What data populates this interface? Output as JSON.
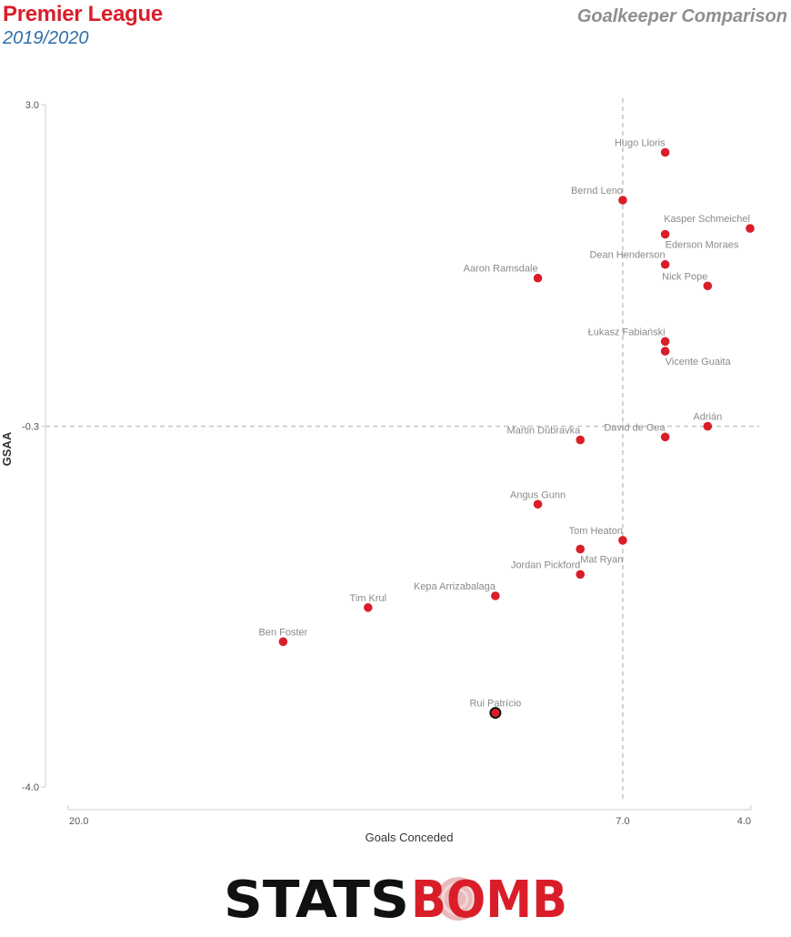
{
  "header": {
    "title": "Premier League",
    "season": "2019/2020",
    "subtitle": "Goalkeeper Comparison"
  },
  "chart_data": {
    "type": "scatter",
    "xlabel": "Goals Conceded",
    "ylabel": "GSAA",
    "x_reversed": true,
    "xlim": [
      20,
      4
    ],
    "ylim": [
      -4,
      3
    ],
    "x_ticks": [
      {
        "value": 20,
        "label": "20.0"
      },
      {
        "value": 7,
        "label": "7.0"
      },
      {
        "value": 4,
        "label": "4.0"
      }
    ],
    "y_ticks": [
      {
        "value": 3,
        "label": "3.0"
      },
      {
        "value": -0.3,
        "label": "-0.3"
      },
      {
        "value": -4,
        "label": "-4.0"
      }
    ],
    "reference_lines": {
      "x": 7,
      "y": -0.3
    },
    "colors": {
      "point": "#d91e2a",
      "highlight_stroke": "#111111",
      "reference": "#c8c8c8"
    },
    "points": [
      {
        "name": "Hugo Lloris",
        "x": 6,
        "y": 2.51,
        "label_pos": "above-left"
      },
      {
        "name": "Bernd Leno",
        "x": 7,
        "y": 2.02,
        "label_pos": "above-left"
      },
      {
        "name": "Kasper Schmeichel",
        "x": 4,
        "y": 1.73,
        "label_pos": "above-left"
      },
      {
        "name": "Ederson Moraes",
        "x": 6,
        "y": 1.67,
        "label_pos": "below-right"
      },
      {
        "name": "Dean Henderson",
        "x": 6,
        "y": 1.36,
        "label_pos": "above-left"
      },
      {
        "name": "Nick Pope",
        "x": 5,
        "y": 1.14,
        "label_pos": "above-left"
      },
      {
        "name": "Aaron Ramsdale",
        "x": 9,
        "y": 1.22,
        "label_pos": "above-left"
      },
      {
        "name": "Łukasz Fabiański",
        "x": 6,
        "y": 0.57,
        "label_pos": "above-left"
      },
      {
        "name": "Vicente Guaita",
        "x": 6,
        "y": 0.47,
        "label_pos": "below-right"
      },
      {
        "name": "Adrián",
        "x": 5,
        "y": -0.3,
        "label_pos": "above"
      },
      {
        "name": "David de Gea",
        "x": 6,
        "y": -0.41,
        "label_pos": "above-left"
      },
      {
        "name": "Martin Dúbravka",
        "x": 8,
        "y": -0.44,
        "label_pos": "above-left"
      },
      {
        "name": "Angus Gunn",
        "x": 9,
        "y": -1.1,
        "label_pos": "above"
      },
      {
        "name": "Tom Heaton",
        "x": 7,
        "y": -1.47,
        "label_pos": "above-left"
      },
      {
        "name": "Mat Ryan",
        "x": 8,
        "y": -1.56,
        "label_pos": "below-right"
      },
      {
        "name": "Jordan Pickford",
        "x": 8,
        "y": -1.82,
        "label_pos": "above-left"
      },
      {
        "name": "Kepa Arrizabalaga",
        "x": 10,
        "y": -2.04,
        "label_pos": "above-left"
      },
      {
        "name": "Tim Krul",
        "x": 13,
        "y": -2.16,
        "label_pos": "above"
      },
      {
        "name": "Ben Foster",
        "x": 15,
        "y": -2.51,
        "label_pos": "above"
      },
      {
        "name": "Rui Patrício",
        "x": 10,
        "y": -3.24,
        "label_pos": "above",
        "highlight": true
      }
    ]
  },
  "brand": {
    "logo_left": "STATS",
    "logo_right": "BOMB"
  }
}
